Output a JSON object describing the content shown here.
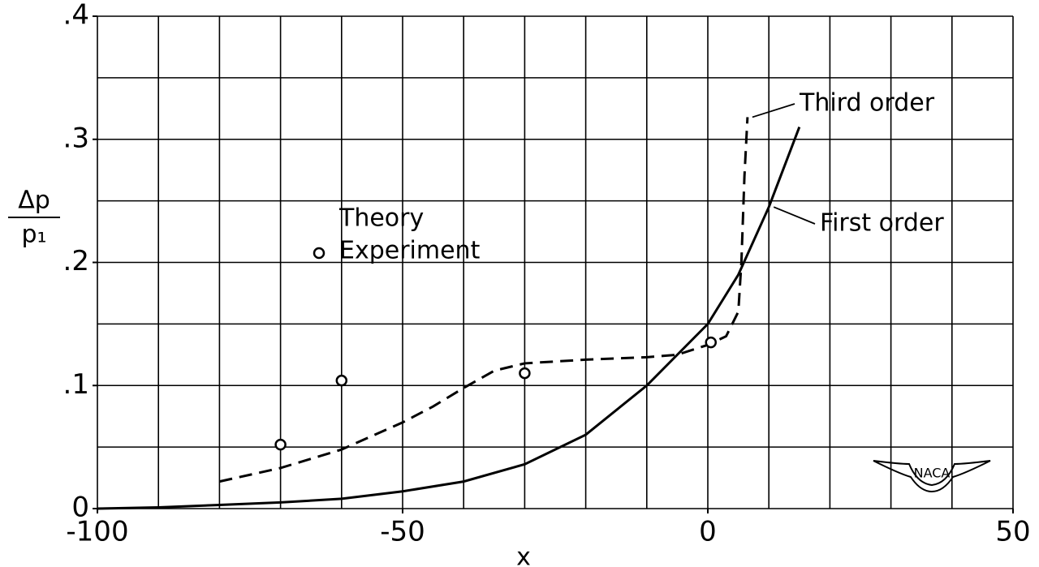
{
  "chart_data": {
    "type": "line",
    "xlabel": "x",
    "ylabel": {
      "numerator": "Δp",
      "denominator": "p₁"
    },
    "xlim": [
      -100,
      50
    ],
    "ylim": [
      0,
      0.4
    ],
    "xticks": [
      -100,
      -50,
      0,
      50
    ],
    "yticks": [
      0,
      {
        "value": 0.1,
        "label": ".1"
      },
      {
        "value": 0.2,
        "label": ".2"
      },
      {
        "value": 0.3,
        "label": ".3"
      },
      {
        "value": 0.4,
        "label": ".4"
      }
    ],
    "xgrid": [
      -100,
      -90,
      -80,
      -70,
      -60,
      -50,
      -40,
      -30,
      -20,
      -10,
      0,
      10,
      20,
      30,
      40,
      50
    ],
    "ygrid": [
      0,
      0.05,
      0.1,
      0.15,
      0.2,
      0.25,
      0.3,
      0.35,
      0.4
    ],
    "color": "#000000",
    "theory_label": "Theory",
    "logo": "NACA",
    "series": [
      {
        "name": "First order",
        "dash": false,
        "label_anchor": [
          10,
          0.245
        ],
        "x": [
          -100,
          -90,
          -80,
          -70,
          -60,
          -50,
          -40,
          -30,
          -20,
          -10,
          0,
          5,
          10,
          15
        ],
        "y": [
          0,
          0.001,
          0.003,
          0.005,
          0.008,
          0.014,
          0.022,
          0.036,
          0.06,
          0.1,
          0.15,
          0.19,
          0.245,
          0.31
        ]
      },
      {
        "name": "Third order",
        "dash": true,
        "label_anchor": [
          6.5,
          0.318
        ],
        "x": [
          -80,
          -70,
          -60,
          -50,
          -45,
          -40,
          -35,
          -30,
          -20,
          -10,
          -5,
          0,
          3,
          5,
          5.5,
          6,
          6.5
        ],
        "y": [
          0.022,
          0.033,
          0.048,
          0.07,
          0.083,
          0.098,
          0.112,
          0.118,
          0.121,
          0.123,
          0.125,
          0.133,
          0.14,
          0.16,
          0.2,
          0.27,
          0.318
        ]
      },
      {
        "name": "Experiment",
        "marker": "circle",
        "x": [
          -70,
          -60,
          -30,
          0.5
        ],
        "y": [
          0.052,
          0.104,
          0.11,
          0.135
        ]
      }
    ]
  }
}
